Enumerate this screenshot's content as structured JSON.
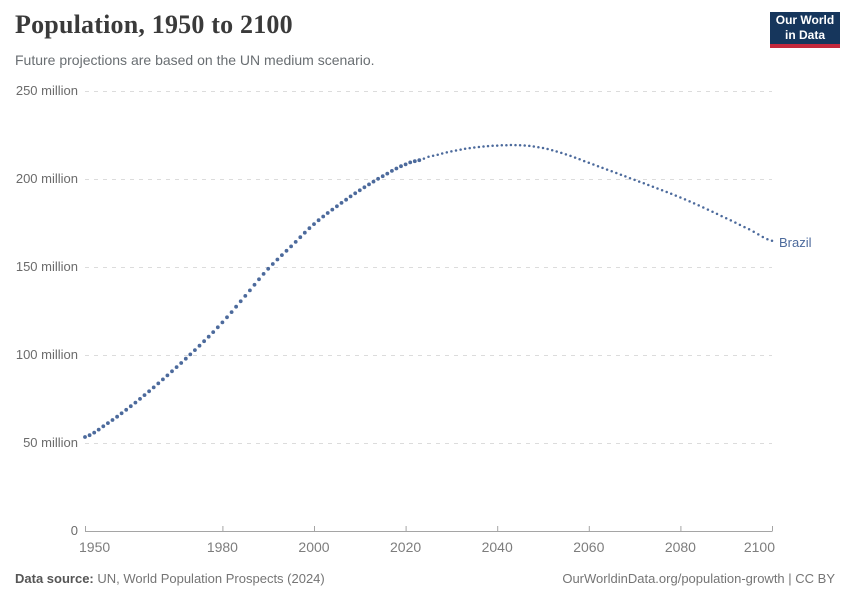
{
  "header": {
    "title": "Population, 1950 to 2100",
    "subtitle": "Future projections are based on the UN medium scenario."
  },
  "logo": {
    "line1": "Our World",
    "line2": "in Data"
  },
  "colors": {
    "series": "#4c6a9c",
    "grid": "#dcdcdc",
    "axis": "#a5a5a5",
    "logo_bg": "#16365c",
    "logo_stripe": "#c4283c"
  },
  "chart_data": {
    "type": "line",
    "title": "Population, 1950 to 2100",
    "subtitle": "Future projections are based on the UN medium scenario.",
    "xlim": [
      1950,
      2100
    ],
    "ylim": [
      0,
      250
    ],
    "y_unit": "million",
    "x_ticks": [
      1950,
      1980,
      2000,
      2020,
      2040,
      2060,
      2080,
      2100
    ],
    "y_ticks": [
      {
        "value": 0,
        "label": "0"
      },
      {
        "value": 50,
        "label": "50 million"
      },
      {
        "value": 100,
        "label": "100 million"
      },
      {
        "value": 150,
        "label": "150 million"
      },
      {
        "value": 200,
        "label": "200 million"
      },
      {
        "value": 250,
        "label": "250 million"
      }
    ],
    "grid": "dashed-horizontal",
    "series": [
      {
        "name": "Brazil",
        "color": "#4c6a9c",
        "style": "dotted-yearly",
        "historical_end_year": 2023,
        "points_year_population_millions": [
          [
            1950,
            53.4
          ],
          [
            1955,
            61.3
          ],
          [
            1960,
            70.9
          ],
          [
            1965,
            81.6
          ],
          [
            1970,
            93.1
          ],
          [
            1975,
            105.3
          ],
          [
            1980,
            118.5
          ],
          [
            1985,
            133.6
          ],
          [
            1990,
            149.0
          ],
          [
            1995,
            161.7
          ],
          [
            2000,
            174.4
          ],
          [
            2005,
            184.5
          ],
          [
            2010,
            193.6
          ],
          [
            2015,
            201.6
          ],
          [
            2020,
            208.3
          ],
          [
            2023,
            210.7
          ],
          [
            2025,
            212.6
          ],
          [
            2030,
            215.7
          ],
          [
            2035,
            217.9
          ],
          [
            2040,
            219.0
          ],
          [
            2045,
            219.2
          ],
          [
            2050,
            217.6
          ],
          [
            2055,
            214.0
          ],
          [
            2060,
            209.2
          ],
          [
            2065,
            204.4
          ],
          [
            2070,
            199.5
          ],
          [
            2075,
            194.6
          ],
          [
            2080,
            189.5
          ],
          [
            2085,
            183.8
          ],
          [
            2090,
            177.7
          ],
          [
            2095,
            171.4
          ],
          [
            2100,
            164.9
          ]
        ]
      }
    ]
  },
  "footer": {
    "source_label": "Data source:",
    "source_text": "UN, World Population Prospects (2024)",
    "credit": "OurWorldinData.org/population-growth | CC BY"
  }
}
